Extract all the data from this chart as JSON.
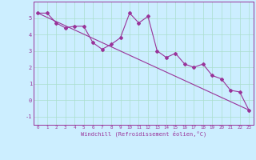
{
  "line1_x": [
    0,
    1,
    2,
    3,
    4,
    5,
    6,
    7,
    8,
    9,
    10,
    11,
    12,
    13,
    14,
    15,
    16,
    17,
    18,
    19,
    20,
    21,
    22,
    23
  ],
  "line1_y": [
    5.3,
    5.3,
    4.7,
    4.4,
    4.5,
    4.5,
    3.5,
    3.1,
    3.4,
    3.8,
    5.3,
    4.7,
    5.1,
    3.0,
    2.6,
    2.85,
    2.2,
    2.0,
    2.2,
    1.5,
    1.3,
    0.6,
    0.5,
    -0.6
  ],
  "line2_x": [
    0,
    23
  ],
  "line2_y": [
    5.3,
    -0.6
  ],
  "color": "#993399",
  "background_color": "#cceeff",
  "grid_color": "#aaddcc",
  "xlabel": "Windchill (Refroidissement éolien,°C)",
  "xlim": [
    -0.5,
    23.5
  ],
  "ylim": [
    -1.5,
    6.0
  ],
  "yticks": [
    -1,
    0,
    1,
    2,
    3,
    4,
    5
  ],
  "xticks": [
    0,
    1,
    2,
    3,
    4,
    5,
    6,
    7,
    8,
    9,
    10,
    11,
    12,
    13,
    14,
    15,
    16,
    17,
    18,
    19,
    20,
    21,
    22,
    23
  ]
}
